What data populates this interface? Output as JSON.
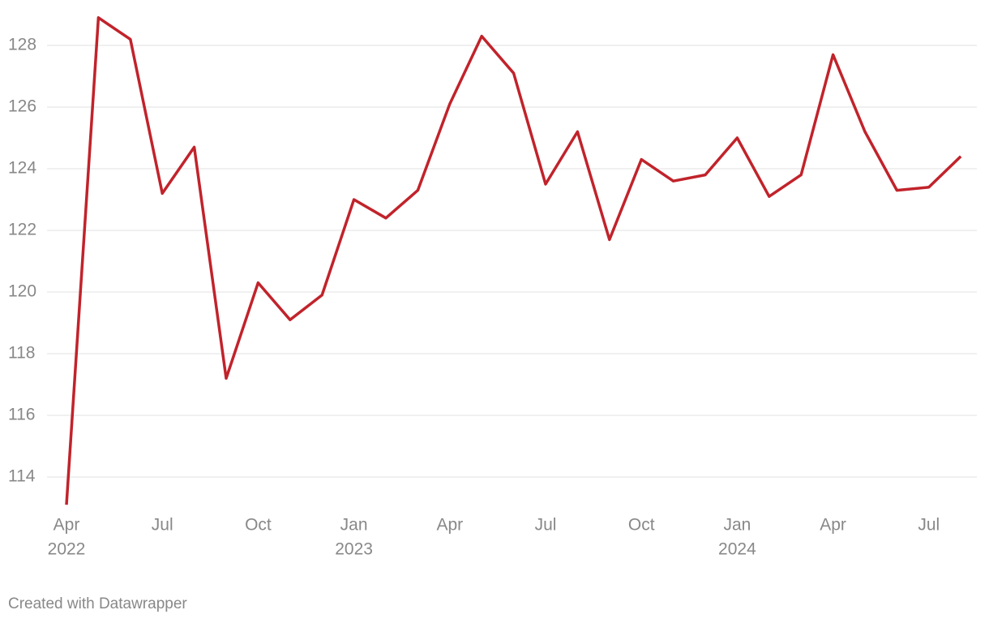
{
  "chart_data": {
    "type": "line",
    "x": [
      "2022-04",
      "2022-05",
      "2022-06",
      "2022-07",
      "2022-08",
      "2022-09",
      "2022-10",
      "2022-11",
      "2022-12",
      "2023-01",
      "2023-02",
      "2023-03",
      "2023-04",
      "2023-05",
      "2023-06",
      "2023-07",
      "2023-08",
      "2023-09",
      "2023-10",
      "2023-11",
      "2023-12",
      "2024-01",
      "2024-02",
      "2024-03",
      "2024-04",
      "2024-05",
      "2024-06",
      "2024-07",
      "2024-08"
    ],
    "series": [
      {
        "color": "#c1232b",
        "values": [
          113.1,
          128.9,
          128.2,
          123.2,
          124.7,
          117.2,
          120.3,
          119.1,
          119.9,
          123.0,
          122.4,
          123.3,
          126.1,
          128.3,
          127.1,
          123.5,
          125.2,
          121.7,
          124.3,
          123.6,
          123.8,
          125.0,
          123.1,
          123.8,
          127.7,
          125.2,
          123.3,
          123.4,
          124.4
        ]
      }
    ],
    "ylim": [
      113,
      129
    ],
    "yticks": [
      114,
      116,
      118,
      120,
      122,
      124,
      126,
      128
    ],
    "xticks": [
      {
        "value": "2022-04",
        "label": "Apr",
        "sublabel": "2022"
      },
      {
        "value": "2022-07",
        "label": "Jul"
      },
      {
        "value": "2022-10",
        "label": "Oct"
      },
      {
        "value": "2023-01",
        "label": "Jan",
        "sublabel": "2023"
      },
      {
        "value": "2023-04",
        "label": "Apr"
      },
      {
        "value": "2023-07",
        "label": "Jul"
      },
      {
        "value": "2023-10",
        "label": "Oct"
      },
      {
        "value": "2024-01",
        "label": "Jan",
        "sublabel": "2024"
      },
      {
        "value": "2024-04",
        "label": "Apr"
      },
      {
        "value": "2024-07",
        "label": "Jul"
      }
    ],
    "grid": true,
    "credit": "Created with Datawrapper"
  }
}
